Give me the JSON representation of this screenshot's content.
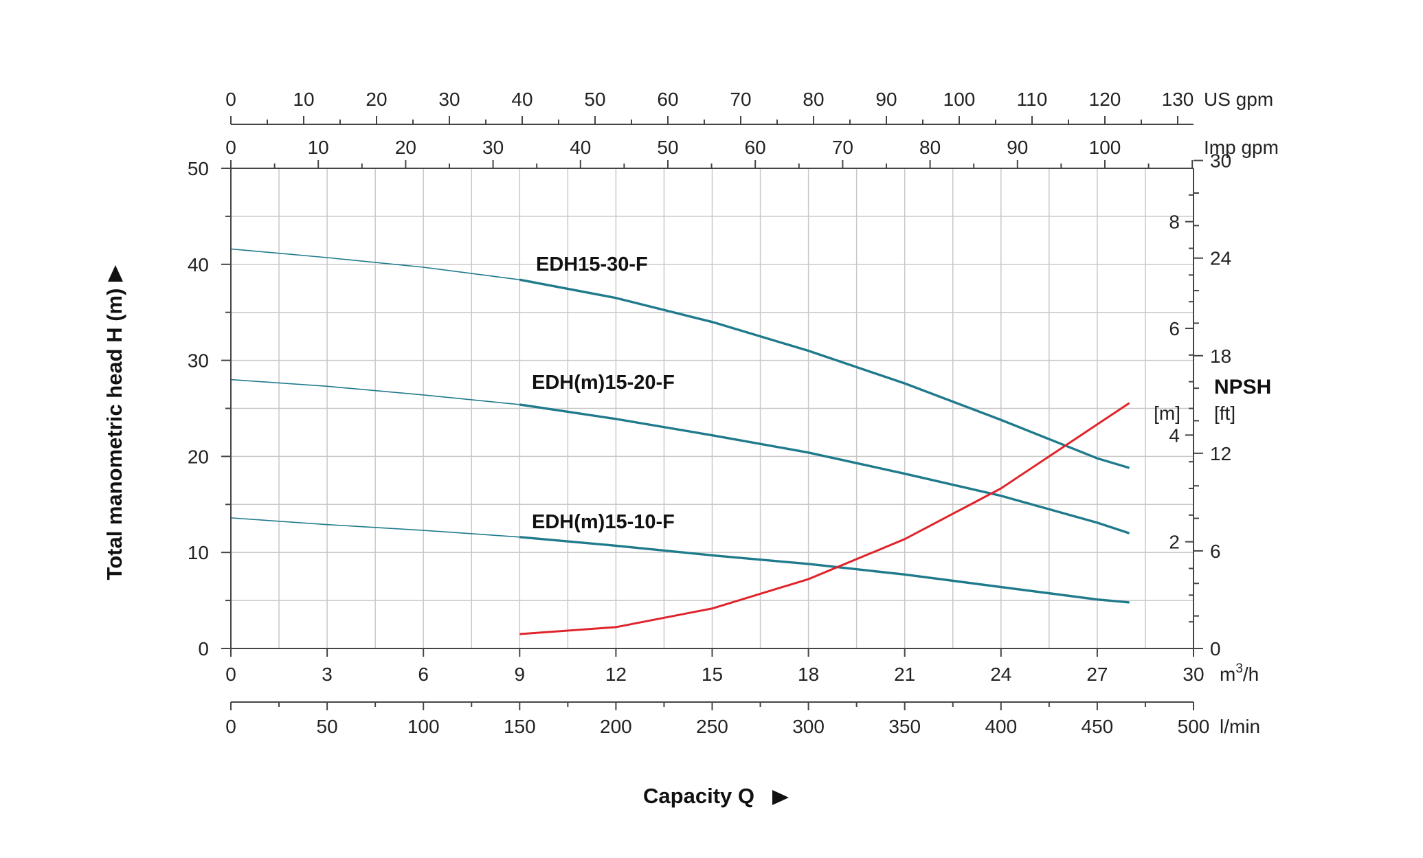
{
  "chart_data": {
    "type": "line",
    "xlabel": "Capacity Q",
    "ylabel": "Total manometric head H (m)",
    "xlim": [
      0,
      30
    ],
    "ylim": [
      0,
      50
    ],
    "grid": true,
    "x_ticks": [
      0,
      3,
      6,
      9,
      12,
      15,
      18,
      21,
      24,
      27,
      30
    ],
    "x_unit": "m³/h",
    "y_ticks": [
      0,
      10,
      20,
      30,
      40,
      50
    ],
    "secondary_axes": {
      "lpm": {
        "unit": "l/min",
        "ticks": [
          0,
          50,
          100,
          150,
          200,
          250,
          300,
          350,
          400,
          450,
          500
        ]
      },
      "us_gpm": {
        "unit": "US gpm",
        "ticks": [
          0,
          10,
          20,
          30,
          40,
          50,
          60,
          70,
          80,
          90,
          100,
          110,
          120,
          130
        ]
      },
      "imp_gpm": {
        "unit": "Imp gpm",
        "ticks": [
          0,
          10,
          20,
          30,
          40,
          50,
          60,
          70,
          80,
          90,
          100
        ]
      }
    },
    "npsh_axis": {
      "title": "NPSH",
      "m_unit": "[m]",
      "ft_unit": "[ft]",
      "m_ticks": [
        0,
        2,
        4,
        6,
        8
      ],
      "ft_ticks": [
        0,
        6,
        12,
        18,
        24,
        30
      ],
      "range_m": [
        0,
        9
      ]
    },
    "series": [
      {
        "name": "EDH15-30-F",
        "color": "#1f7a8c",
        "x": [
          0,
          3,
          6,
          9,
          12,
          15,
          18,
          21,
          24,
          27,
          28
        ],
        "y": [
          41.6,
          40.7,
          39.7,
          38.4,
          36.5,
          34,
          31,
          27.6,
          23.8,
          19.8,
          18.8
        ]
      },
      {
        "name": "EDH(m)15-20-F",
        "color": "#1f7a8c",
        "x": [
          0,
          3,
          6,
          9,
          12,
          15,
          18,
          21,
          24,
          27,
          28
        ],
        "y": [
          28,
          27.3,
          26.4,
          25.4,
          23.9,
          22.2,
          20.4,
          18.2,
          15.9,
          13.1,
          12
        ]
      },
      {
        "name": "EDH(m)15-10-F",
        "color": "#1f7a8c",
        "x": [
          0,
          3,
          6,
          9,
          12,
          15,
          18,
          21,
          24,
          27,
          28
        ],
        "y": [
          13.6,
          12.9,
          12.3,
          11.6,
          10.7,
          9.7,
          8.8,
          7.7,
          6.4,
          5.1,
          4.8
        ]
      },
      {
        "name": "NPSH",
        "color": "#e0232a",
        "axis": "npsh_m",
        "x": [
          9,
          12,
          15,
          18,
          21,
          24,
          27,
          28
        ],
        "y": [
          0.27,
          0.4,
          0.75,
          1.3,
          2.05,
          3,
          4.2,
          4.6
        ]
      }
    ]
  }
}
